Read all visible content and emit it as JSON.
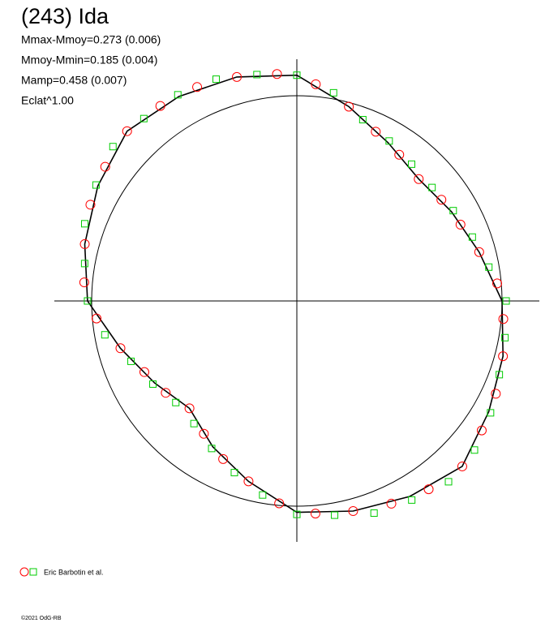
{
  "chart_data": {
    "type": "polar",
    "title": "(243) Ida",
    "stats": [
      "Mmax-Mmoy=0.273 (0.006)",
      "Mmoy-Mmin=0.185 (0.004)",
      "Mamp=0.458 (0.007)",
      "Eclat^1.00"
    ],
    "legend": "Eric Barbotin et al.",
    "footer": "©2021 OdG-RB",
    "curve": {
      "color": "#000000",
      "angles": [
        0,
        15,
        30,
        45,
        60,
        75,
        90,
        105,
        120,
        135,
        150,
        165,
        180,
        195,
        210,
        225,
        240,
        255,
        270,
        285,
        300,
        315,
        330,
        345
      ],
      "radius": [
        1.0,
        0.92,
        0.87,
        0.84,
        0.89,
        0.98,
        1.1,
        1.13,
        1.15,
        1.17,
        1.12,
        1.07,
        1.02,
        0.89,
        0.8,
        0.74,
        0.82,
        0.91,
        1.03,
        1.06,
        1.1,
        1.14,
        1.08,
        1.04
      ]
    },
    "series": [
      {
        "marker": "circle",
        "color": "#ff0000",
        "angles": [
          5,
          15,
          25,
          35,
          45,
          55,
          65,
          75,
          85,
          95,
          105,
          115,
          125,
          135,
          145,
          155,
          165,
          175,
          185,
          195,
          205,
          215,
          225,
          235,
          245,
          255,
          265,
          275,
          285,
          295,
          305,
          315,
          325,
          335,
          345,
          355
        ],
        "radius": [
          0.98,
          0.92,
          0.88,
          0.86,
          0.84,
          0.87,
          0.91,
          0.98,
          1.06,
          1.11,
          1.13,
          1.15,
          1.16,
          1.17,
          1.14,
          1.11,
          1.07,
          1.04,
          0.98,
          0.89,
          0.82,
          0.78,
          0.74,
          0.79,
          0.85,
          0.91,
          0.99,
          1.04,
          1.06,
          1.09,
          1.12,
          1.14,
          1.1,
          1.07,
          1.04,
          1.01
        ]
      },
      {
        "marker": "square",
        "color": "#00cc00",
        "angles": [
          0,
          10,
          20,
          30,
          40,
          50,
          60,
          70,
          80,
          90,
          100,
          110,
          120,
          130,
          140,
          150,
          160,
          170,
          180,
          190,
          200,
          210,
          220,
          230,
          240,
          250,
          260,
          270,
          280,
          290,
          300,
          310,
          320,
          330,
          340,
          350
        ],
        "radius": [
          1.02,
          0.95,
          0.91,
          0.88,
          0.86,
          0.87,
          0.9,
          0.94,
          1.03,
          1.1,
          1.12,
          1.15,
          1.16,
          1.16,
          1.17,
          1.13,
          1.1,
          1.05,
          1.02,
          0.95,
          0.86,
          0.81,
          0.77,
          0.78,
          0.83,
          0.89,
          0.96,
          1.04,
          1.06,
          1.1,
          1.12,
          1.15,
          1.13,
          1.09,
          1.05,
          1.03
        ]
      }
    ]
  }
}
